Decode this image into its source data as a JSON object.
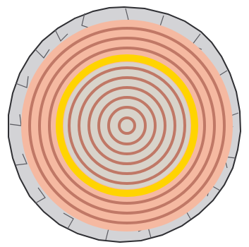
{
  "diagram": {
    "subject": "tree-trunk-cross-section",
    "colors": {
      "background": "#ffffff",
      "bark_fill": "#d3d3d6",
      "bark_outline": "#2f2f33",
      "bark_crack": "#5a5a60",
      "sapwood": "#f5b9a1",
      "ring_line": "#c07866",
      "cambium_band": "#ffd400",
      "heartwood": "#d8d3ca"
    }
  }
}
